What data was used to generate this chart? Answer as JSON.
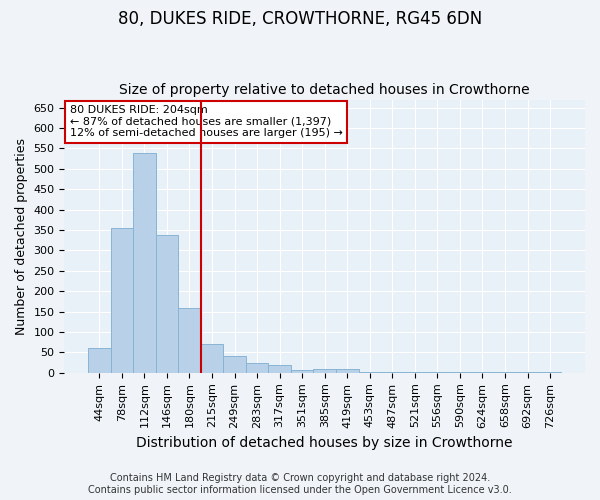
{
  "title": "80, DUKES RIDE, CROWTHORNE, RG45 6DN",
  "subtitle": "Size of property relative to detached houses in Crowthorne",
  "xlabel": "Distribution of detached houses by size in Crowthorne",
  "ylabel": "Number of detached properties",
  "categories": [
    "44sqm",
    "78sqm",
    "112sqm",
    "146sqm",
    "180sqm",
    "215sqm",
    "249sqm",
    "283sqm",
    "317sqm",
    "351sqm",
    "385sqm",
    "419sqm",
    "453sqm",
    "487sqm",
    "521sqm",
    "556sqm",
    "590sqm",
    "624sqm",
    "658sqm",
    "692sqm",
    "726sqm"
  ],
  "values": [
    60,
    355,
    540,
    338,
    158,
    70,
    42,
    25,
    20,
    8,
    10,
    10,
    2,
    2,
    2,
    2,
    2,
    2,
    2,
    2,
    2
  ],
  "bar_color": "#b8d0e8",
  "bar_edgecolor": "#88b4d4",
  "vline_x_index": 5,
  "vline_color": "#cc0000",
  "annotation_text": "80 DUKES RIDE: 204sqm\n← 87% of detached houses are smaller (1,397)\n12% of semi-detached houses are larger (195) →",
  "annotation_box_facecolor": "#ffffff",
  "annotation_box_edgecolor": "#cc0000",
  "ylim": [
    0,
    670
  ],
  "yticks": [
    0,
    50,
    100,
    150,
    200,
    250,
    300,
    350,
    400,
    450,
    500,
    550,
    600,
    650
  ],
  "fig_bg_color": "#f0f4f8",
  "plot_bg_color": "#e8f0f8",
  "grid_color": "#ffffff",
  "title_fontsize": 12,
  "subtitle_fontsize": 10,
  "xlabel_fontsize": 10,
  "ylabel_fontsize": 9,
  "tick_fontsize": 8,
  "annotation_fontsize": 8,
  "footer_fontsize": 7
}
